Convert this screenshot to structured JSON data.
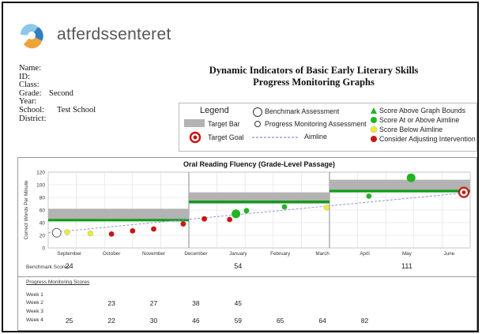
{
  "brand": {
    "name": "atferdssenteret",
    "colors": {
      "orange": "#f0a23a",
      "blue": "#2f7fc0",
      "light_blue": "#8ec7ea"
    }
  },
  "student_info": {
    "fields": [
      {
        "label": "Name:",
        "value": ""
      },
      {
        "label": "ID:",
        "value": ""
      },
      {
        "label": "Class:",
        "value": ""
      },
      {
        "label": "Grade:",
        "value": "Second"
      },
      {
        "label": "Year:",
        "value": ""
      },
      {
        "label": "School:",
        "value": "Test School"
      },
      {
        "label": "District:",
        "value": ""
      }
    ]
  },
  "report": {
    "title_line1": "Dynamic Indicators of Basic Early Literary Skills",
    "title_line2": "Progress Monitoring Graphs"
  },
  "legend": {
    "title": "Legend",
    "target_bar": "Target Bar",
    "target_goal": "Target Goal",
    "benchmark": "Benchmark Assessment",
    "progress": "Progress Monitoring Assessment",
    "aimline": "Aimline",
    "above_bounds": "Score Above Graph Bounds",
    "at_or_above": "Score At or Above Aimline",
    "below": "Score Below Aimline",
    "adjust": "Consider Adjusting Intervention"
  },
  "colors": {
    "target_bar": "#b3b3b3",
    "goal_line": "#0f9d18",
    "aimline": "#8a8ad8",
    "green": "#22b422",
    "yellow": "#f0ec2a",
    "red": "#cc1414",
    "benchmark_fill": "#ffffff"
  },
  "chart_data": {
    "type": "scatter",
    "title": "Oral Reading Fluency (Grade-Level Passage)",
    "ylabel": "Correct Words Per Minute",
    "ylim": [
      0,
      120
    ],
    "yticks": [
      0,
      20,
      40,
      60,
      80,
      100,
      120
    ],
    "months": [
      "September",
      "October",
      "November",
      "December",
      "January",
      "February",
      "March",
      "April",
      "May",
      "June"
    ],
    "target_bars": [
      {
        "from_month": 0,
        "to_month": 5,
        "low": 43,
        "high": 62
      },
      {
        "from_month": 5,
        "to_month": 10,
        "low": 70,
        "high": 88
      },
      {
        "from_month": 10,
        "to_month": 15,
        "low": 90,
        "high": 108
      }
    ],
    "goal_lines": [
      {
        "from_month": 0,
        "to_month": 5,
        "value": 44
      },
      {
        "from_month": 5,
        "to_month": 10,
        "value": 73
      },
      {
        "from_month": 10,
        "to_month": 15,
        "value": 90
      }
    ],
    "aimline": {
      "from": {
        "month": 0,
        "value": 24
      },
      "to": {
        "month": 15,
        "value": 88
      }
    },
    "target_goal": {
      "month": 15,
      "value": 88
    },
    "points": [
      {
        "month": 0.2,
        "value": 24,
        "type": "benchmark"
      },
      {
        "month": 0.45,
        "value": 25,
        "type": "yellow"
      },
      {
        "month": 1.0,
        "value": 23,
        "type": "yellow"
      },
      {
        "month": 1.5,
        "value": 22,
        "type": "red"
      },
      {
        "month": 2.0,
        "value": 27,
        "type": "red"
      },
      {
        "month": 2.5,
        "value": 30,
        "type": "red"
      },
      {
        "month": 3.2,
        "value": 38,
        "type": "red"
      },
      {
        "month": 3.7,
        "value": 46,
        "type": "red"
      },
      {
        "month": 4.3,
        "value": 45,
        "type": "red"
      },
      {
        "month": 4.45,
        "value": 54,
        "type": "green_benchmark"
      },
      {
        "month": 4.7,
        "value": 59,
        "type": "green"
      },
      {
        "month": 5.6,
        "value": 65,
        "type": "green"
      },
      {
        "month": 6.6,
        "value": 64,
        "type": "yellow"
      },
      {
        "month": 7.6,
        "value": 82,
        "type": "green"
      },
      {
        "month": 8.6,
        "value": 111,
        "type": "green_benchmark"
      }
    ],
    "benchmark_scores_label": "Benchmark Scores",
    "benchmark_scores": [
      {
        "month": 0,
        "value": "24"
      },
      {
        "month": 4,
        "value": "54"
      },
      {
        "month": 8,
        "value": "111"
      }
    ],
    "progress_monitoring": {
      "title": "Progress Monitoring Scores",
      "weeks": [
        "Week 1",
        "Week 2",
        "Week 3",
        "Week 4"
      ],
      "scores": [
        [
          "",
          "",
          "",
          "",
          "",
          "",
          "",
          ""
        ],
        [
          "",
          "23",
          "27",
          "38",
          "45",
          "",
          "",
          ""
        ],
        [
          "",
          "",
          "",
          "",
          "",
          "",
          "",
          ""
        ],
        [
          "25",
          "22",
          "30",
          "46",
          "59",
          "65",
          "64",
          "82"
        ]
      ]
    }
  }
}
